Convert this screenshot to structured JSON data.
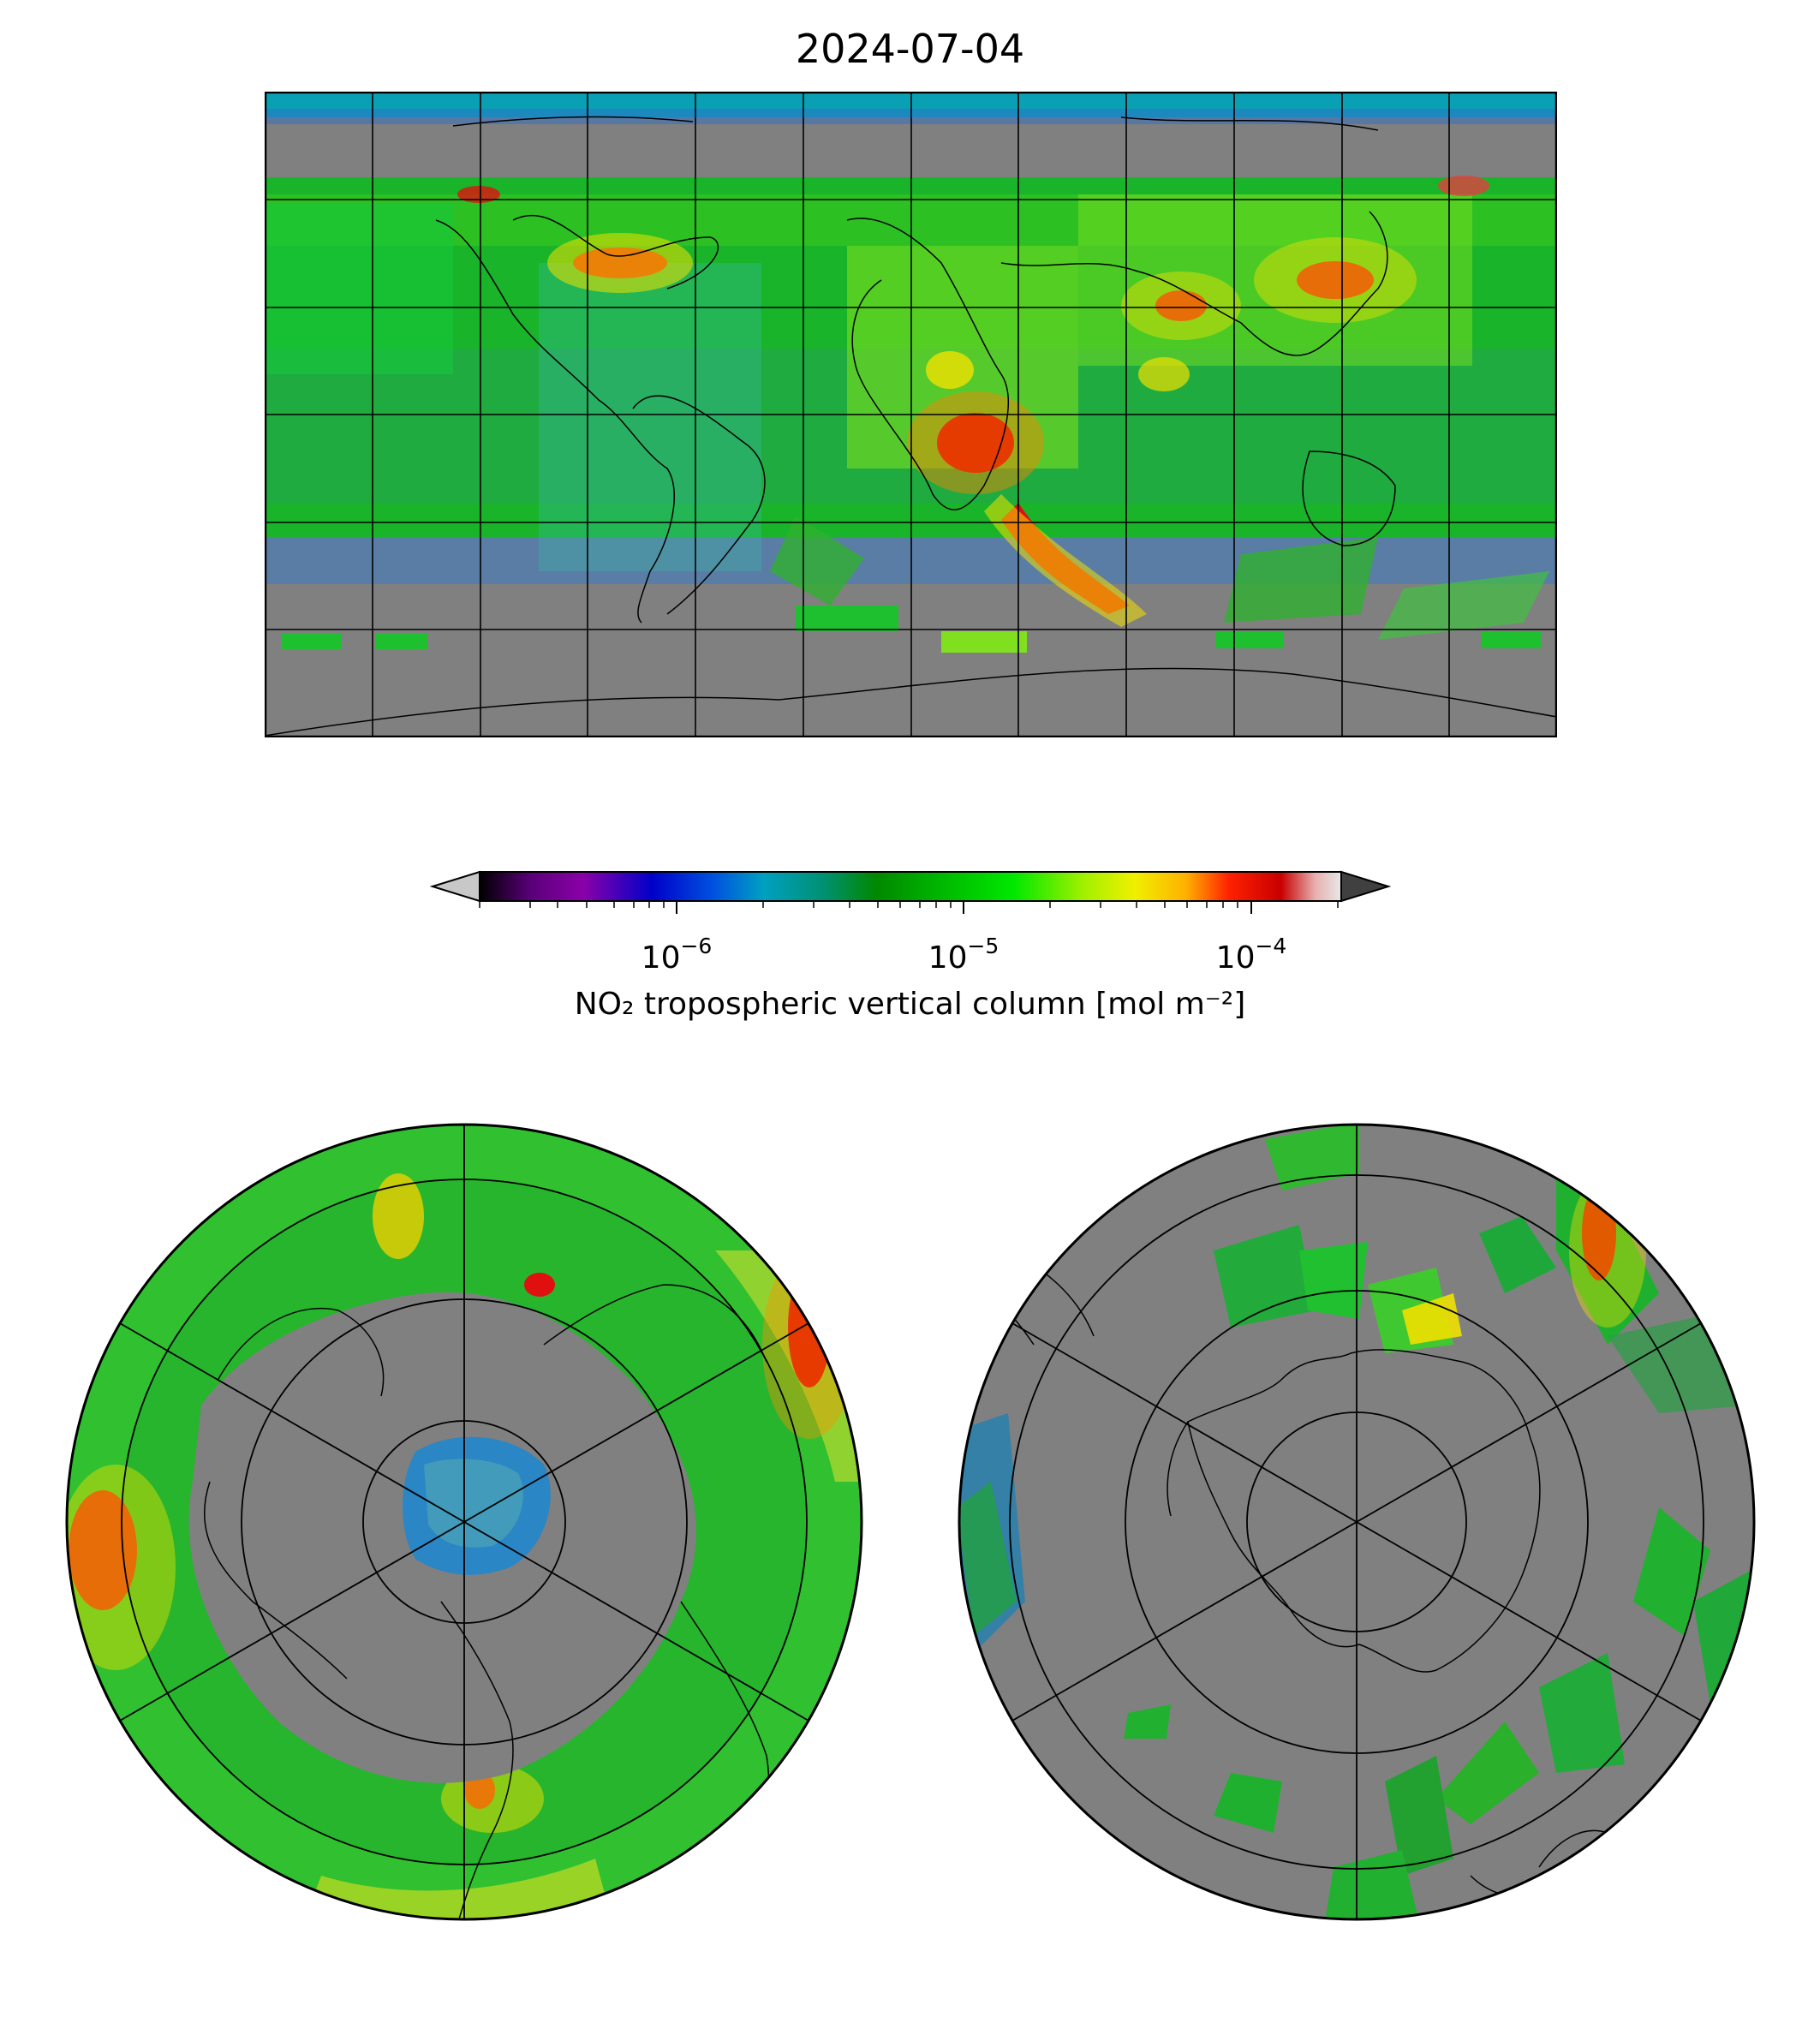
{
  "figure": {
    "title": "2024-07-04"
  },
  "colorbar": {
    "label": "NO₂ tropospheric vertical column [mol m⁻²]",
    "scale": "log",
    "range": [
      2e-07,
      0.0002
    ],
    "extend": "both",
    "ticks": [
      {
        "base": "10",
        "exp": "−6",
        "value": 1e-06
      },
      {
        "base": "10",
        "exp": "−5",
        "value": 1e-05
      },
      {
        "base": "10",
        "exp": "−4",
        "value": 0.0001
      }
    ],
    "colormap": [
      "#000000",
      "#5a007a",
      "#8a00a8",
      "#0000c8",
      "#0040e0",
      "#0090d0",
      "#00a0a0",
      "#009060",
      "#008800",
      "#00b400",
      "#00e000",
      "#90f000",
      "#f0f000",
      "#ffb000",
      "#ff3000",
      "#e00000",
      "#c80000",
      "#e8b0b0",
      "#e0e0e0"
    ],
    "under_color": "#c8c8c8",
    "over_color": "#404040"
  },
  "maps": {
    "global": {
      "projection": "plate-carree",
      "gridlines": true,
      "coastlines": true,
      "nodata_color": "#808080"
    },
    "north_polar": {
      "projection": "north-polar-stereographic",
      "gridlines": true,
      "coastlines": true,
      "nodata_color": "#808080"
    },
    "south_polar": {
      "projection": "south-polar-stereographic",
      "gridlines": true,
      "coastlines": true,
      "nodata_color": "#808080"
    }
  }
}
